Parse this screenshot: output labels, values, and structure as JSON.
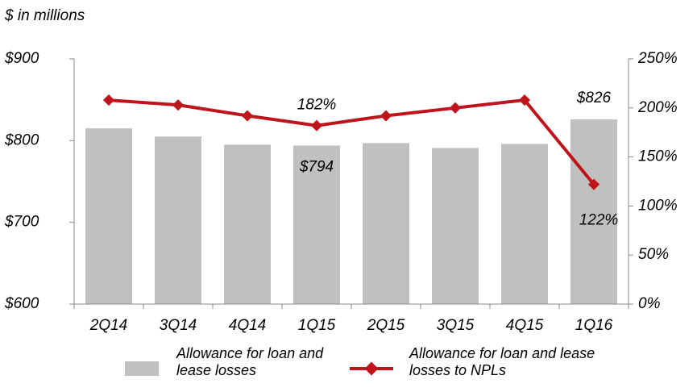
{
  "chart_data": {
    "type": "bar-line",
    "subtitle": "$ in millions",
    "categories": [
      "2Q14",
      "3Q14",
      "4Q14",
      "1Q15",
      "2Q15",
      "3Q15",
      "4Q15",
      "1Q16"
    ],
    "series": [
      {
        "name": "Allowance for loan and lease losses",
        "type": "bar",
        "color": "#c0c0c0",
        "values": [
          815,
          805,
          795,
          794,
          797,
          791,
          796,
          826
        ],
        "value_labels": [
          null,
          null,
          null,
          "$794",
          null,
          null,
          null,
          "$826"
        ]
      },
      {
        "name": "Allowance for loan and lease losses to NPLs",
        "type": "line",
        "color": "#c0141c",
        "axis": "y2",
        "values": [
          208,
          203,
          192,
          182,
          192,
          200,
          208,
          122
        ],
        "value_labels": [
          null,
          null,
          null,
          "182%",
          null,
          null,
          null,
          "122%"
        ]
      }
    ],
    "ylim": [
      600,
      900
    ],
    "yticks": [
      {
        "value": 600,
        "label": "$600"
      },
      {
        "value": 700,
        "label": "$700"
      },
      {
        "value": 800,
        "label": "$800"
      },
      {
        "value": 900,
        "label": "$900"
      }
    ],
    "y2lim": [
      0,
      250
    ],
    "y2ticks": [
      {
        "value": 0,
        "label": "0%"
      },
      {
        "value": 50,
        "label": "50%"
      },
      {
        "value": 100,
        "label": "100%"
      },
      {
        "value": 150,
        "label": "150%"
      },
      {
        "value": 200,
        "label": "200%"
      },
      {
        "value": 250,
        "label": "250%"
      }
    ]
  }
}
